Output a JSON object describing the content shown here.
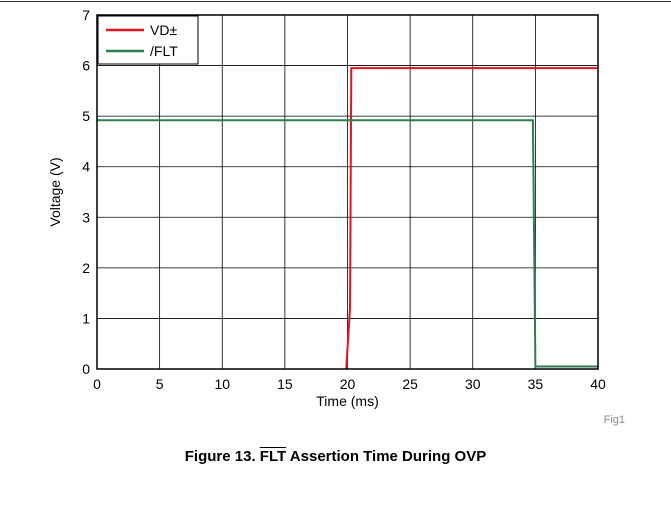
{
  "chart_data": {
    "type": "line",
    "xlabel": "Time (ms)",
    "ylabel": "Voltage (V)",
    "xlim": [
      0,
      40
    ],
    "ylim": [
      0,
      7
    ],
    "xticks": [
      0,
      5,
      10,
      15,
      20,
      25,
      30,
      35,
      40
    ],
    "yticks": [
      0,
      1,
      2,
      3,
      4,
      5,
      6,
      7
    ],
    "grid": true,
    "legend_position": "top-left",
    "series": [
      {
        "name": "VD±",
        "color": "#e8141b",
        "x": [
          19.9,
          20.2,
          20.3,
          40
        ],
        "y": [
          0,
          1.2,
          5.95,
          5.95
        ]
      },
      {
        "name": "/FLT",
        "color": "#2e7d4f",
        "x": [
          0,
          34.8,
          35.0,
          40
        ],
        "y": [
          4.92,
          4.92,
          0.05,
          0.05
        ]
      }
    ]
  },
  "figure_id": "Fig1",
  "caption": {
    "prefix": "Figure 13.",
    "signal": "FLT",
    "suffix": "Assertion Time During OVP"
  }
}
